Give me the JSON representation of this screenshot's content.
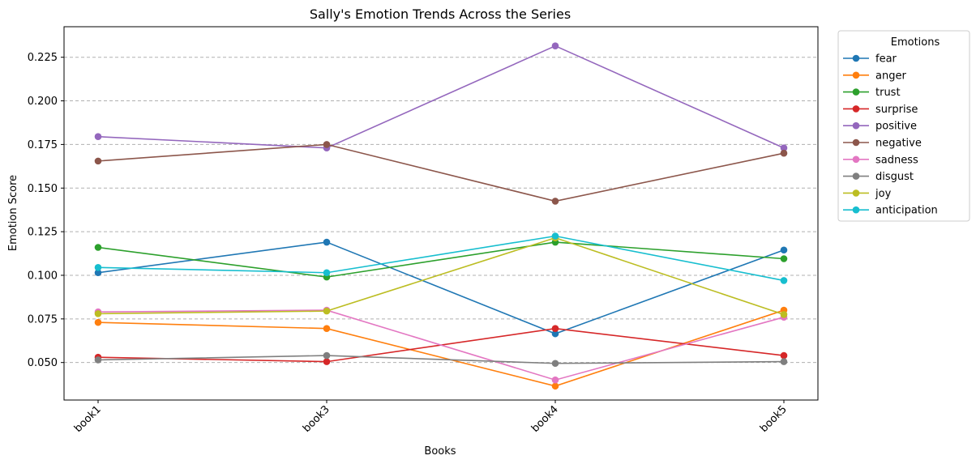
{
  "chart_data": {
    "type": "line",
    "title": "Sally's Emotion Trends Across the Series",
    "xlabel": "Books",
    "ylabel": "Emotion Score",
    "categories": [
      "book1",
      "book3",
      "book4",
      "book5"
    ],
    "ylim": [
      0.0285,
      0.2425
    ],
    "yticks": [
      0.05,
      0.075,
      0.1,
      0.125,
      0.15,
      0.175,
      0.2,
      0.225
    ],
    "ytick_labels": [
      "0.050",
      "0.075",
      "0.100",
      "0.125",
      "0.150",
      "0.175",
      "0.200",
      "0.225"
    ],
    "grid": "y-dashed",
    "legend": {
      "title": "Emotions",
      "placement": "outside-top-right"
    },
    "series": [
      {
        "name": "fear",
        "color": "#1f77b4",
        "values": [
          0.1015,
          0.119,
          0.0665,
          0.1145
        ]
      },
      {
        "name": "anger",
        "color": "#ff7f0e",
        "values": [
          0.073,
          0.0695,
          0.0365,
          0.08
        ]
      },
      {
        "name": "trust",
        "color": "#2ca02c",
        "values": [
          0.116,
          0.099,
          0.119,
          0.1095
        ]
      },
      {
        "name": "surprise",
        "color": "#d62728",
        "values": [
          0.053,
          0.0505,
          0.0695,
          0.054
        ]
      },
      {
        "name": "positive",
        "color": "#9467bd",
        "values": [
          0.1795,
          0.173,
          0.2315,
          0.173
        ]
      },
      {
        "name": "negative",
        "color": "#8c564b",
        "values": [
          0.1655,
          0.175,
          0.1425,
          0.17
        ]
      },
      {
        "name": "sadness",
        "color": "#e377c2",
        "values": [
          0.079,
          0.08,
          0.04,
          0.076
        ]
      },
      {
        "name": "disgust",
        "color": "#7f7f7f",
        "values": [
          0.0515,
          0.054,
          0.0495,
          0.0505
        ]
      },
      {
        "name": "joy",
        "color": "#bcbd22",
        "values": [
          0.078,
          0.0795,
          0.1215,
          0.0775
        ]
      },
      {
        "name": "anticipation",
        "color": "#17becf",
        "values": [
          0.1045,
          0.1015,
          0.1225,
          0.097
        ]
      }
    ]
  }
}
